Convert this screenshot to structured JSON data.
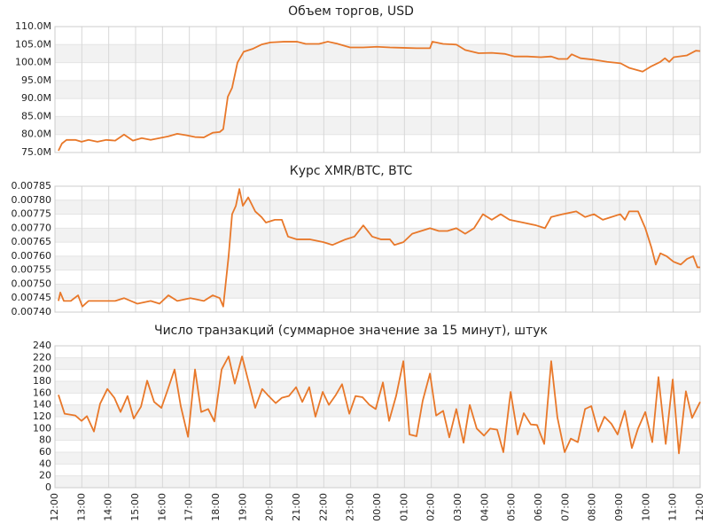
{
  "chart_data": [
    {
      "type": "line",
      "title": "Объем торгов, USD",
      "color": "#e8782a",
      "x": [
        0.13,
        0.26,
        0.43,
        0.76,
        0.99,
        1.25,
        1.58,
        1.91,
        2.24,
        2.57,
        2.9,
        3.23,
        3.56,
        3.89,
        4.22,
        4.55,
        4.88,
        5.21,
        5.54,
        5.87,
        6.13,
        6.26,
        6.43,
        6.59,
        6.79,
        7.02,
        7.35,
        7.68,
        8.01,
        8.51,
        9.0,
        9.33,
        9.82,
        10.15,
        10.48,
        10.98,
        11.47,
        11.97,
        12.46,
        12.96,
        13.45,
        13.95,
        14.04,
        14.44,
        14.93,
        15.26,
        15.76,
        16.25,
        16.75,
        17.08,
        17.57,
        18.07,
        18.46,
        18.73,
        19.06,
        19.22,
        19.55,
        20.05,
        20.54,
        21.04,
        21.37,
        21.86,
        22.19,
        22.52,
        22.69,
        22.85,
        23.02,
        23.51,
        23.84,
        24
      ],
      "values": [
        75500000,
        77500000,
        78500000,
        78500000,
        78000000,
        78500000,
        78000000,
        78500000,
        78300000,
        80000000,
        78300000,
        79000000,
        78500000,
        79000000,
        79500000,
        80200000,
        79800000,
        79300000,
        79200000,
        80500000,
        80700000,
        81500000,
        90500000,
        93000000,
        100000000,
        103000000,
        103800000,
        105000000,
        105600000,
        105800000,
        105800000,
        105200000,
        105200000,
        105800000,
        105300000,
        104200000,
        104200000,
        104400000,
        104200000,
        104100000,
        104000000,
        104000000,
        105800000,
        105200000,
        105000000,
        103500000,
        102600000,
        102700000,
        102400000,
        101700000,
        101700000,
        101500000,
        101700000,
        101000000,
        101000000,
        102300000,
        101200000,
        100800000,
        100200000,
        99800000,
        98500000,
        97500000,
        99000000,
        100200000,
        101200000,
        100200000,
        101500000,
        102000000,
        103300000,
        103200000
      ],
      "ylim": [
        75000000,
        110000000
      ],
      "yticks": [
        {
          "value": 110000000,
          "label": "110.0M"
        },
        {
          "value": 105000000,
          "label": "105.0M"
        },
        {
          "value": 100000000,
          "label": "100.0M"
        },
        {
          "value": 95000000,
          "label": "95.0M"
        },
        {
          "value": 90000000,
          "label": "90.0M"
        },
        {
          "value": 85000000,
          "label": "85.0M"
        },
        {
          "value": 80000000,
          "label": "80.0M"
        },
        {
          "value": 75000000,
          "label": "75.0M"
        }
      ]
    },
    {
      "type": "line",
      "title": "Курс XMR/BTC, BTC",
      "color": "#e8782a",
      "x": [
        0.13,
        0.2,
        0.33,
        0.59,
        0.86,
        1.02,
        1.25,
        1.75,
        2.24,
        2.57,
        3.07,
        3.56,
        3.89,
        4.22,
        4.55,
        5.04,
        5.54,
        5.87,
        6.13,
        6.26,
        6.46,
        6.59,
        6.73,
        6.86,
        6.99,
        7.19,
        7.45,
        7.68,
        7.85,
        8.18,
        8.44,
        8.67,
        9.0,
        9.49,
        9.99,
        10.32,
        10.81,
        11.14,
        11.47,
        11.8,
        12.13,
        12.46,
        12.63,
        12.96,
        13.29,
        13.62,
        13.95,
        14.28,
        14.6,
        14.93,
        15.26,
        15.59,
        15.92,
        16.25,
        16.58,
        16.91,
        17.41,
        17.9,
        18.23,
        18.46,
        18.89,
        19.39,
        19.72,
        20.05,
        20.38,
        20.7,
        21.03,
        21.2,
        21.36,
        21.69,
        21.96,
        22.19,
        22.35,
        22.52,
        22.75,
        23.01,
        23.28,
        23.51,
        23.74,
        23.9,
        24
      ],
      "values": [
        0.00744,
        0.00747,
        0.00744,
        0.00744,
        0.00746,
        0.00742,
        0.00744,
        0.00744,
        0.00744,
        0.00745,
        0.00743,
        0.00744,
        0.00743,
        0.00746,
        0.00744,
        0.00745,
        0.00744,
        0.00746,
        0.00745,
        0.00742,
        0.0076,
        0.00775,
        0.00778,
        0.00784,
        0.00778,
        0.00781,
        0.00776,
        0.00774,
        0.00772,
        0.00773,
        0.00773,
        0.00767,
        0.00766,
        0.00766,
        0.00765,
        0.00764,
        0.00766,
        0.00767,
        0.00771,
        0.00767,
        0.00766,
        0.00766,
        0.00764,
        0.00765,
        0.00768,
        0.00769,
        0.0077,
        0.00769,
        0.00769,
        0.0077,
        0.00768,
        0.0077,
        0.00775,
        0.00773,
        0.00775,
        0.00773,
        0.00772,
        0.00771,
        0.0077,
        0.00774,
        0.00775,
        0.00776,
        0.00774,
        0.00775,
        0.00773,
        0.00774,
        0.00775,
        0.00773,
        0.00776,
        0.00776,
        0.0077,
        0.00763,
        0.00757,
        0.00761,
        0.0076,
        0.00758,
        0.00757,
        0.00759,
        0.0076,
        0.00756,
        0.00756
      ],
      "ylim": [
        0.0074,
        0.00785
      ],
      "yticks": [
        0.00785,
        {
          "value": 0.0078,
          "label": "0.00780"
        },
        0.00775,
        {
          "value": 0.0077,
          "label": "0.00770"
        },
        0.00765,
        {
          "value": 0.0076,
          "label": "0.00760"
        },
        0.00755,
        {
          "value": 0.0075,
          "label": "0.00750"
        },
        0.00745,
        {
          "value": 0.0074,
          "label": "0.00740"
        }
      ]
    },
    {
      "type": "line",
      "title": "Число транзакций (суммарное значение за 15 минут), штук",
      "color": "#e8782a",
      "x": [
        0.13,
        0.36,
        0.76,
        0.99,
        1.19,
        1.45,
        1.68,
        1.95,
        2.21,
        2.44,
        2.7,
        2.93,
        3.2,
        3.43,
        3.69,
        3.96,
        4.19,
        4.45,
        4.68,
        4.95,
        5.21,
        5.44,
        5.7,
        5.93,
        6.2,
        6.46,
        6.69,
        6.96,
        7.19,
        7.45,
        7.71,
        7.95,
        8.21,
        8.44,
        8.7,
        8.97,
        9.2,
        9.46,
        9.69,
        9.96,
        10.19,
        10.45,
        10.68,
        10.95,
        11.18,
        11.44,
        11.7,
        11.93,
        12.2,
        12.43,
        12.69,
        12.96,
        13.19,
        13.45,
        13.68,
        13.95,
        14.18,
        14.44,
        14.67,
        14.93,
        15.2,
        15.43,
        15.69,
        15.96,
        16.19,
        16.45,
        16.68,
        16.95,
        17.21,
        17.44,
        17.7,
        17.93,
        18.2,
        18.46,
        18.69,
        18.96,
        19.19,
        19.45,
        19.72,
        19.95,
        20.21,
        20.44,
        20.7,
        20.93,
        21.2,
        21.46,
        21.69,
        21.96,
        22.22,
        22.45,
        22.72,
        22.98,
        23.21,
        23.47,
        23.7,
        24
      ],
      "values": [
        157,
        125,
        122,
        113,
        121,
        95,
        142,
        167,
        152,
        128,
        155,
        117,
        137,
        181,
        145,
        135,
        165,
        200,
        138,
        86,
        200,
        128,
        133,
        112,
        200,
        222,
        176,
        222,
        181,
        135,
        167,
        155,
        143,
        152,
        155,
        170,
        145,
        170,
        120,
        162,
        140,
        157,
        175,
        125,
        155,
        153,
        140,
        133,
        178,
        113,
        155,
        214,
        90,
        87,
        147,
        193,
        122,
        130,
        85,
        133,
        76,
        140,
        100,
        88,
        100,
        98,
        60,
        162,
        90,
        126,
        107,
        106,
        74,
        214,
        119,
        60,
        83,
        77,
        133,
        138,
        95,
        120,
        108,
        90,
        130,
        67,
        100,
        128,
        77,
        187,
        74,
        183,
        58,
        163,
        118,
        145
      ],
      "ylim": [
        0,
        240
      ],
      "yticks": [
        240,
        220,
        200,
        180,
        160,
        140,
        120,
        100,
        80,
        60,
        40,
        20,
        0
      ],
      "xlim": [
        0,
        24
      ],
      "xticks": [
        {
          "value": 0,
          "label": "12:00"
        },
        {
          "value": 1,
          "label": "13:00"
        },
        {
          "value": 2,
          "label": "14:00"
        },
        {
          "value": 3,
          "label": "15:00"
        },
        {
          "value": 4,
          "label": "16:00"
        },
        {
          "value": 5,
          "label": "17:00"
        },
        {
          "value": 6,
          "label": "18:00"
        },
        {
          "value": 7,
          "label": "19:00"
        },
        {
          "value": 8,
          "label": "20:00"
        },
        {
          "value": 9,
          "label": "21:00"
        },
        {
          "value": 10,
          "label": "22:00"
        },
        {
          "value": 11,
          "label": "23:00"
        },
        {
          "value": 12,
          "label": "00:00"
        },
        {
          "value": 13,
          "label": "01:00"
        },
        {
          "value": 14,
          "label": "02:00"
        },
        {
          "value": 15,
          "label": "03:00"
        },
        {
          "value": 16,
          "label": "04:00"
        },
        {
          "value": 17,
          "label": "05:00"
        },
        {
          "value": 18,
          "label": "06:00"
        },
        {
          "value": 19,
          "label": "07:00"
        },
        {
          "value": 20,
          "label": "08:00"
        },
        {
          "value": 21,
          "label": "09:00"
        },
        {
          "value": 22,
          "label": "10:00"
        },
        {
          "value": 23,
          "label": "11:00"
        },
        {
          "value": 24,
          "label": "12:00"
        }
      ]
    }
  ]
}
